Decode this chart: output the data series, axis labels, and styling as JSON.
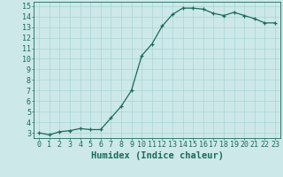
{
  "x": [
    0,
    1,
    2,
    3,
    4,
    5,
    6,
    7,
    8,
    9,
    10,
    11,
    12,
    13,
    14,
    15,
    16,
    17,
    18,
    19,
    20,
    21,
    22,
    23
  ],
  "y": [
    3.0,
    2.8,
    3.1,
    3.2,
    3.4,
    3.3,
    3.3,
    4.4,
    5.5,
    7.0,
    10.3,
    11.4,
    13.1,
    14.2,
    14.8,
    14.8,
    14.7,
    14.3,
    14.1,
    14.4,
    14.1,
    13.8,
    13.4,
    13.4
  ],
  "xlim": [
    -0.5,
    23.5
  ],
  "ylim": [
    2.5,
    15.4
  ],
  "yticks": [
    3,
    4,
    5,
    6,
    7,
    8,
    9,
    10,
    11,
    12,
    13,
    14,
    15
  ],
  "xticks": [
    0,
    1,
    2,
    3,
    4,
    5,
    6,
    7,
    8,
    9,
    10,
    11,
    12,
    13,
    14,
    15,
    16,
    17,
    18,
    19,
    20,
    21,
    22,
    23
  ],
  "xlabel": "Humidex (Indice chaleur)",
  "line_color": "#1a6b5a",
  "marker": "+",
  "bg_color": "#cce8e8",
  "grid_color": "#aad4d4",
  "tick_color": "#1a6b5a",
  "label_fontsize": 7,
  "tick_fontsize": 6,
  "xlabel_fontsize": 7.5
}
